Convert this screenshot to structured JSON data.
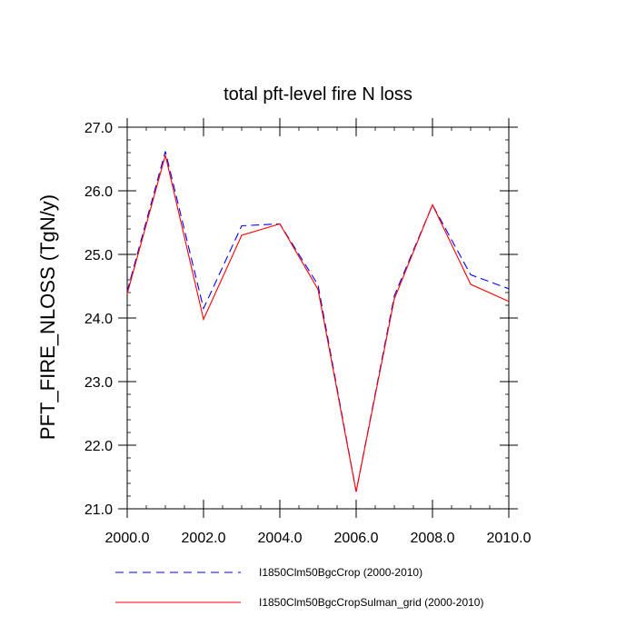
{
  "chart_data": {
    "type": "line",
    "title": "total pft-level fire N loss",
    "xlabel": "",
    "ylabel": "PFT_FIRE_NLOSS  (TgN/y)",
    "xlim": [
      2000,
      2010
    ],
    "ylim": [
      21,
      27
    ],
    "xticks": [
      2000,
      2002,
      2004,
      2006,
      2008,
      2010
    ],
    "xtick_labels": [
      "2000.0",
      "2002.0",
      "2004.0",
      "2006.0",
      "2008.0",
      "2010.0"
    ],
    "yticks": [
      21,
      22,
      23,
      24,
      25,
      26,
      27
    ],
    "ytick_labels": [
      "21.0",
      "22.0",
      "23.0",
      "24.0",
      "25.0",
      "26.0",
      "27.0"
    ],
    "x": [
      2000,
      2001,
      2002,
      2003,
      2004,
      2005,
      2006,
      2007,
      2008,
      2009,
      2010
    ],
    "series": [
      {
        "name": "I1850Clm50BgcCrop (2000-2010)",
        "color": "#0000ff",
        "dash": "dashed",
        "values": [
          24.42,
          26.62,
          24.15,
          25.45,
          25.48,
          24.52,
          21.27,
          24.35,
          25.78,
          24.68,
          24.46
        ]
      },
      {
        "name": "I1850Clm50BgcCropSulman_grid (2000-2010)",
        "color": "#ff0000",
        "dash": "solid",
        "values": [
          24.38,
          26.56,
          23.98,
          25.3,
          25.48,
          24.45,
          21.27,
          24.3,
          25.78,
          24.53,
          24.26
        ]
      }
    ],
    "grid": false,
    "legend_position": "bottom"
  }
}
